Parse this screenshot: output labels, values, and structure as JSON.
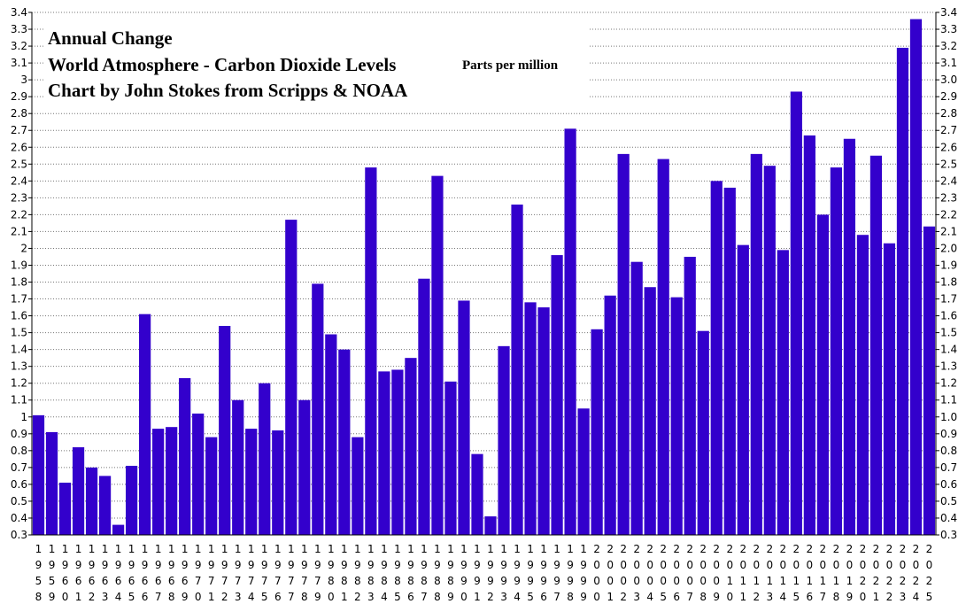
{
  "chart_data": {
    "type": "bar",
    "title_lines": [
      "Annual Change",
      "World Atmosphere - Carbon Dioxide Levels",
      "Chart by John Stokes from Scripps & NOAA"
    ],
    "unit_note": "Parts per million",
    "ylim": [
      0.3,
      3.4
    ],
    "yticks_left": [
      "0.3",
      "0.4",
      "0.5",
      "0.6",
      "0.7",
      "0.8",
      "0.9",
      "1",
      "1.1",
      "1.2",
      "1.3",
      "1.4",
      "1.5",
      "1.6",
      "1.7",
      "1.8",
      "1.9",
      "2",
      "2.1",
      "2.2",
      "2.3",
      "2.4",
      "2.5",
      "2.6",
      "2.7",
      "2.8",
      "2.9",
      "3",
      "3.1",
      "3.2",
      "3.3",
      "3.4"
    ],
    "yticks_right": [
      "0.3",
      "0.4",
      "0.5",
      "0.6",
      "0.7",
      "0.8",
      "0.9",
      "1.0",
      "1.1",
      "1.2",
      "1.3",
      "1.4",
      "1.5",
      "1.6",
      "1.7",
      "1.8",
      "1.9",
      "2.0",
      "2.1",
      "2.2",
      "2.3",
      "2.4",
      "2.5",
      "2.6",
      "2.7",
      "2.8",
      "2.9",
      "3.0",
      "3.1",
      "3.2",
      "3.3",
      "3.4"
    ],
    "grid": true,
    "bar_color": "#3300cc",
    "categories": [
      "1958",
      "1959",
      "1960",
      "1961",
      "1962",
      "1963",
      "1964",
      "1965",
      "1966",
      "1967",
      "1968",
      "1969",
      "1970",
      "1971",
      "1972",
      "1973",
      "1974",
      "1975",
      "1976",
      "1977",
      "1978",
      "1979",
      "1980",
      "1981",
      "1982",
      "1983",
      "1984",
      "1985",
      "1986",
      "1987",
      "1988",
      "1989",
      "1990",
      "1991",
      "1992",
      "1993",
      "1994",
      "1995",
      "1996",
      "1997",
      "1998",
      "1999",
      "2000",
      "2001",
      "2002",
      "2003",
      "2004",
      "2005",
      "2006",
      "2007",
      "2008",
      "2009",
      "2010",
      "2011",
      "2012",
      "2013",
      "2014",
      "2015",
      "2016",
      "2017",
      "2018",
      "2019",
      "2020",
      "2021",
      "2022",
      "2023",
      "2024",
      "2025"
    ],
    "values": [
      1.01,
      0.91,
      0.61,
      0.82,
      0.7,
      0.65,
      0.36,
      0.71,
      1.61,
      0.93,
      0.94,
      1.23,
      1.02,
      0.88,
      1.54,
      1.1,
      0.93,
      1.2,
      0.92,
      2.17,
      1.1,
      1.79,
      1.49,
      1.4,
      0.88,
      2.48,
      1.27,
      1.28,
      1.35,
      1.82,
      2.43,
      1.21,
      1.69,
      0.78,
      0.41,
      1.42,
      2.26,
      1.68,
      1.65,
      1.96,
      2.71,
      1.05,
      1.52,
      1.72,
      2.56,
      1.92,
      1.77,
      2.53,
      1.71,
      1.95,
      1.51,
      2.4,
      2.36,
      2.02,
      2.56,
      2.49,
      1.99,
      2.93,
      2.67,
      2.2,
      2.48,
      2.65,
      2.08,
      2.55,
      2.03,
      3.19,
      3.36,
      2.13
    ]
  }
}
